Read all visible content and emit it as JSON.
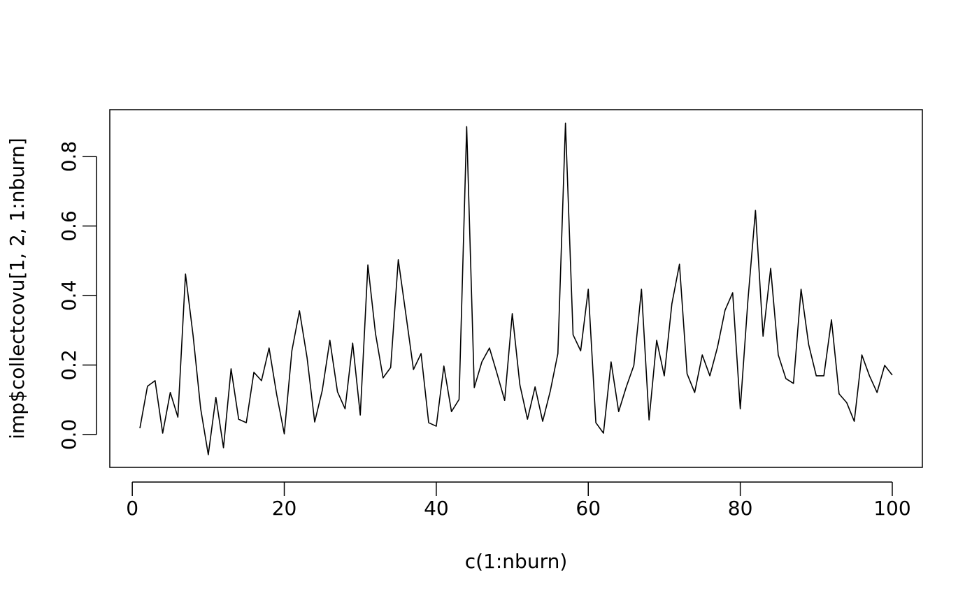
{
  "chart_data": {
    "type": "line",
    "x_label": "c(1:nburn)",
    "y_label": "imp$collectcovu[1, 2, 1:nburn]",
    "x": [
      1,
      2,
      3,
      4,
      5,
      6,
      7,
      8,
      9,
      10,
      11,
      12,
      13,
      14,
      15,
      16,
      17,
      18,
      19,
      20,
      21,
      22,
      23,
      24,
      25,
      26,
      27,
      28,
      29,
      30,
      31,
      32,
      33,
      34,
      35,
      36,
      37,
      38,
      39,
      40,
      41,
      42,
      43,
      44,
      45,
      46,
      47,
      48,
      49,
      50,
      51,
      52,
      53,
      54,
      55,
      56,
      57,
      58,
      59,
      60,
      61,
      62,
      63,
      64,
      65,
      66,
      67,
      68,
      69,
      70,
      71,
      72,
      73,
      74,
      75,
      76,
      77,
      78,
      79,
      80,
      81,
      82,
      83,
      84,
      85,
      86,
      87,
      88,
      89,
      90,
      91,
      92,
      93,
      94,
      95,
      96,
      97,
      98,
      99,
      100
    ],
    "series": [
      {
        "color": "#000000",
        "values": [
          0.018,
          0.139,
          0.155,
          0.004,
          0.121,
          0.05,
          0.462,
          0.285,
          0.074,
          -0.058,
          0.107,
          -0.038,
          0.189,
          0.044,
          0.034,
          0.179,
          0.155,
          0.249,
          0.115,
          0.002,
          0.241,
          0.356,
          0.221,
          0.036,
          0.127,
          0.271,
          0.123,
          0.074,
          0.263,
          0.056,
          0.488,
          0.291,
          0.163,
          0.193,
          0.503,
          0.346,
          0.187,
          0.233,
          0.034,
          0.024,
          0.197,
          0.066,
          0.101,
          0.886,
          0.135,
          0.209,
          0.249,
          0.175,
          0.098,
          0.348,
          0.143,
          0.044,
          0.137,
          0.038,
          0.125,
          0.233,
          0.896,
          0.287,
          0.241,
          0.418,
          0.034,
          0.004,
          0.209,
          0.066,
          0.137,
          0.199,
          0.418,
          0.042,
          0.271,
          0.169,
          0.376,
          0.49,
          0.175,
          0.121,
          0.229,
          0.169,
          0.251,
          0.358,
          0.408,
          0.074,
          0.384,
          0.645,
          0.283,
          0.478,
          0.229,
          0.161,
          0.147,
          0.418,
          0.259,
          0.169,
          0.169,
          0.33,
          0.117,
          0.092,
          0.038,
          0.229,
          0.169,
          0.121,
          0.199,
          0.171
        ]
      }
    ],
    "xlim": [
      -2.96,
      103.96
    ],
    "ylim": [
      -0.0945,
      0.9347
    ],
    "xticks": [
      0,
      20,
      40,
      60,
      80,
      100
    ],
    "yticks": [
      {
        "value": 0,
        "label": "0.0"
      },
      0.2,
      0.4,
      0.6,
      0.8
    ]
  }
}
